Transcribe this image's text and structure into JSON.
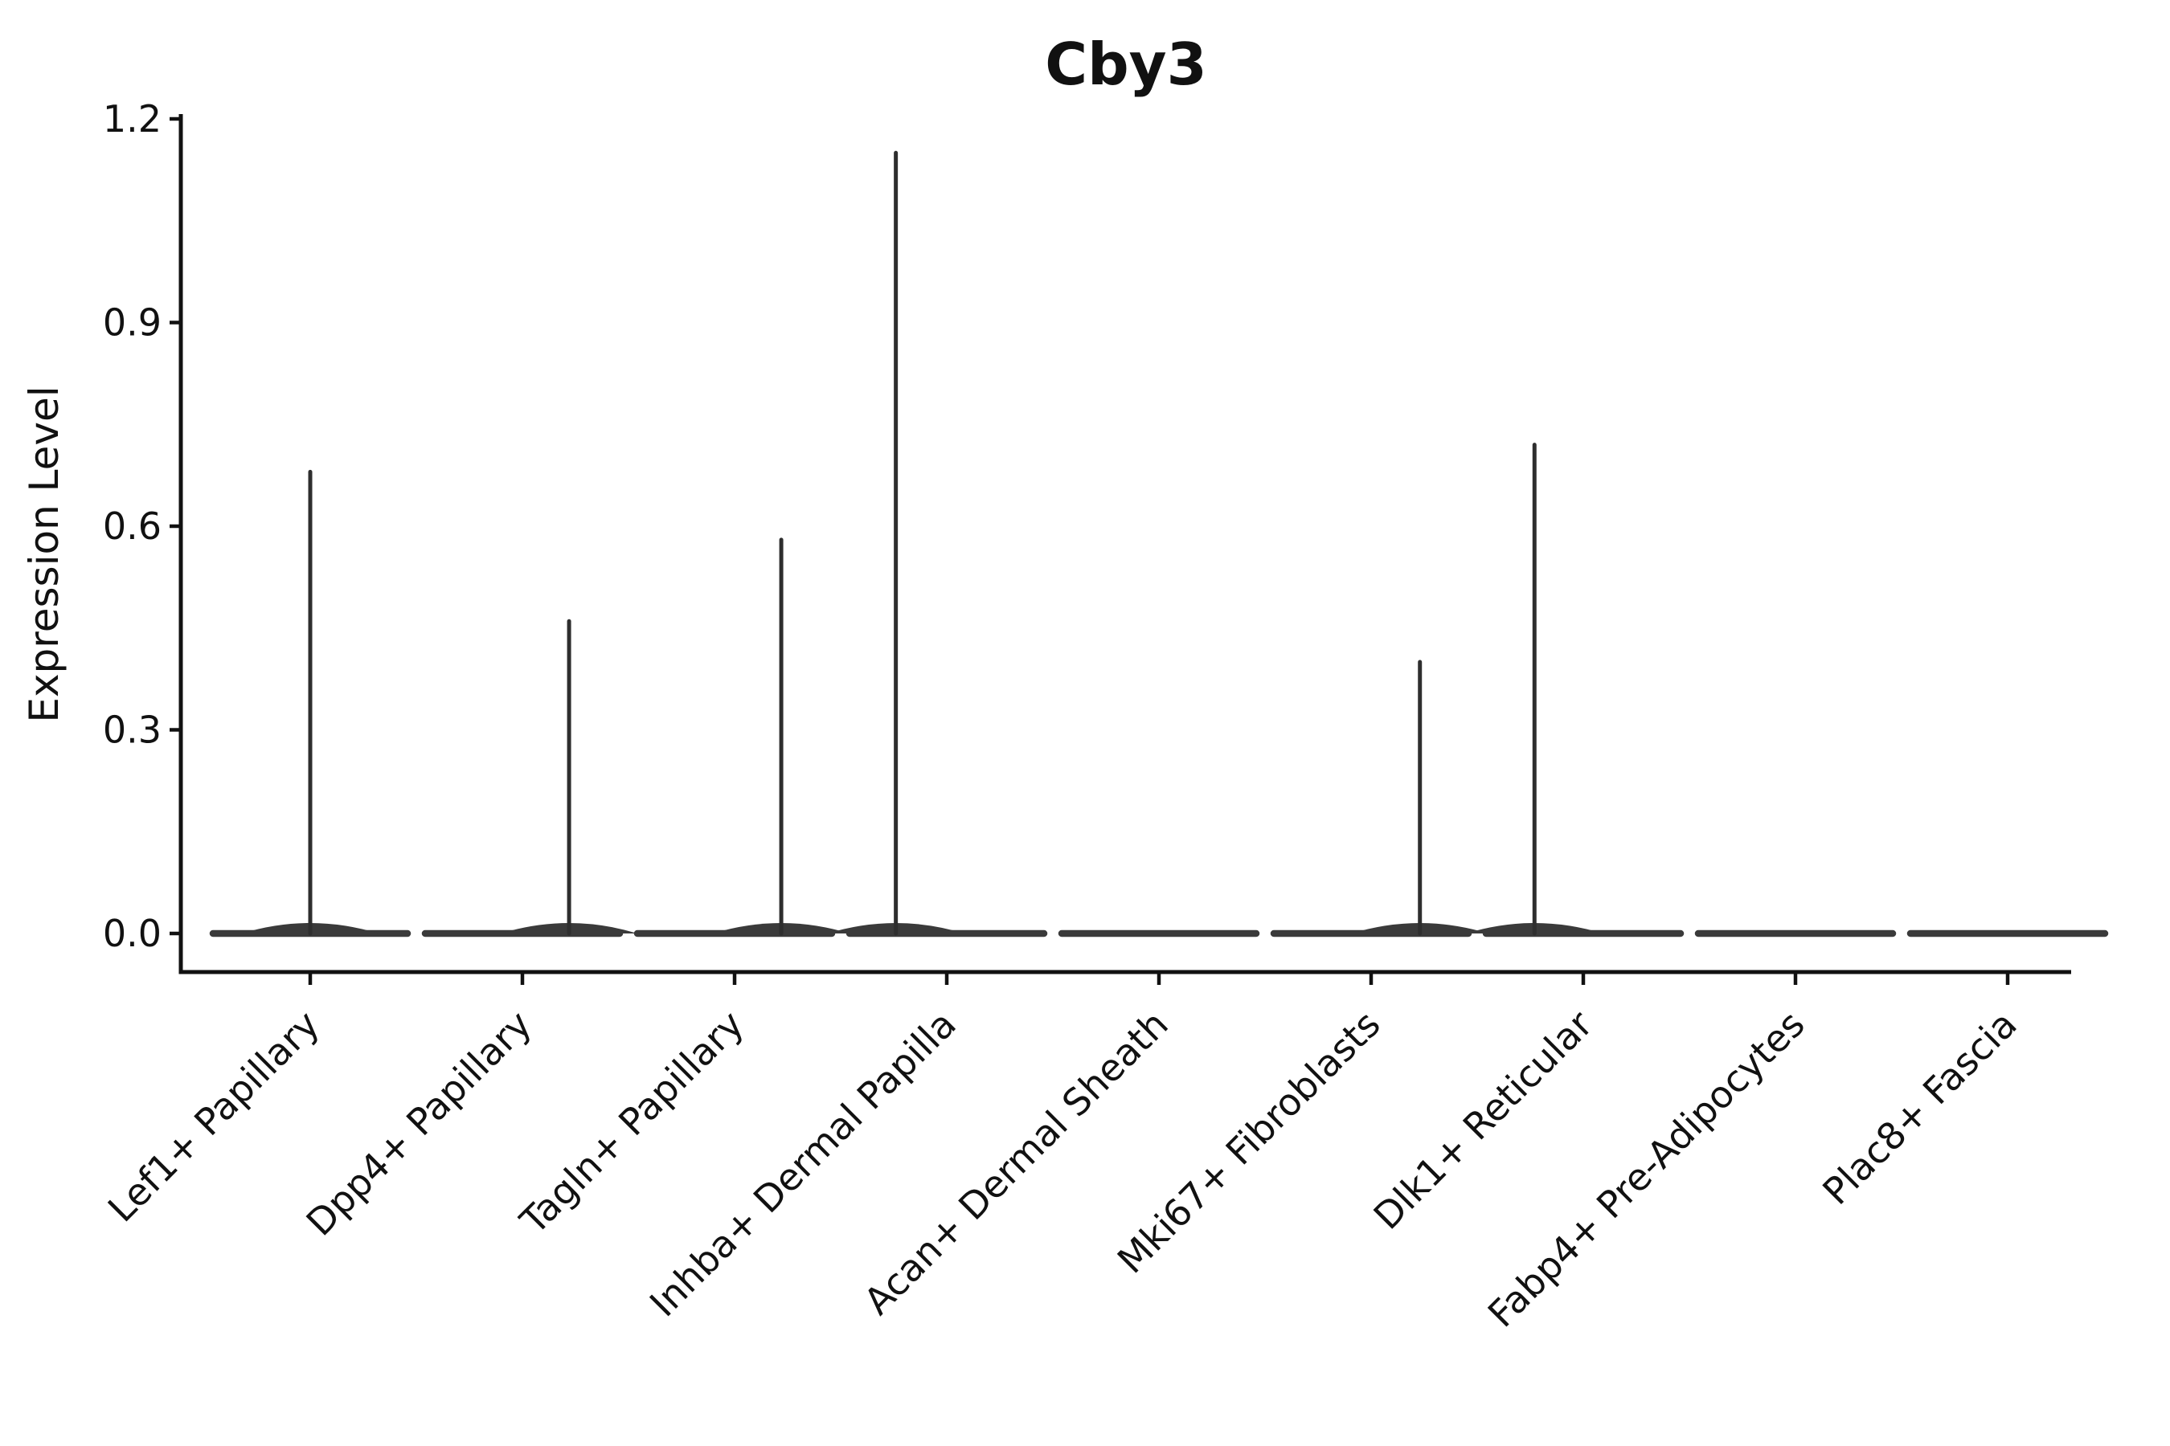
{
  "chart_data": {
    "type": "violin",
    "title": "Cby3",
    "xlabel": "",
    "ylabel": "Expression Level",
    "ylim": [
      0,
      1.2
    ],
    "yticks": [
      0,
      0.3,
      0.6,
      0.9,
      1.2
    ],
    "ytick_labels": [
      "0.0",
      "0.3",
      "0.6",
      "0.9",
      "1.2"
    ],
    "grid": false,
    "legend": false,
    "categories": [
      "Lef1+ Papillary",
      "Dpp4+ Papillary",
      "Tagln+ Papillary",
      "Inhba+ Dermal Papilla",
      "Acan+ Dermal Sheath",
      "Mki67+ Fibroblasts",
      "Dlk1+ Reticular",
      "Fabp4+ Pre-Adipocytes",
      "Plac8+ Fascia"
    ],
    "violins": [
      {
        "category": "Lef1+ Papillary",
        "max_expression": 0.68,
        "spike": true,
        "spike_offset_frac": 0.0,
        "note": "mass concentrated at 0, thin tail to max"
      },
      {
        "category": "Dpp4+ Papillary",
        "max_expression": 0.46,
        "spike": true,
        "spike_offset_frac": 0.22,
        "note": "mass concentrated at 0, thin tail to max"
      },
      {
        "category": "Tagln+ Papillary",
        "max_expression": 0.58,
        "spike": true,
        "spike_offset_frac": 0.22,
        "note": "mass concentrated at 0, thin tail to max"
      },
      {
        "category": "Inhba+ Dermal Papilla",
        "max_expression": 1.15,
        "spike": true,
        "spike_offset_frac": -0.24,
        "note": "mass concentrated at 0, thin tail to max"
      },
      {
        "category": "Acan+ Dermal Sheath",
        "max_expression": 0.0,
        "spike": false,
        "spike_offset_frac": 0,
        "note": "all zero, flat violin"
      },
      {
        "category": "Mki67+ Fibroblasts",
        "max_expression": 0.4,
        "spike": true,
        "spike_offset_frac": 0.23,
        "note": "mass concentrated at 0, thin tail to max"
      },
      {
        "category": "Dlk1+ Reticular",
        "max_expression": 0.72,
        "spike": true,
        "spike_offset_frac": -0.23,
        "note": "mass concentrated at 0, thin tail to max"
      },
      {
        "category": "Fabp4+ Pre-Adipocytes",
        "max_expression": 0.0,
        "spike": false,
        "spike_offset_frac": 0,
        "note": "all zero, flat violin"
      },
      {
        "category": "Plac8+ Fascia",
        "max_expression": 0.0,
        "spike": false,
        "spike_offset_frac": 0,
        "note": "all zero, flat violin"
      }
    ],
    "colors": {
      "violin_body": "#3a3a3a",
      "spike": "#2e2e2e",
      "axis": "#111111",
      "text": "#111111",
      "background": "#ffffff"
    }
  }
}
